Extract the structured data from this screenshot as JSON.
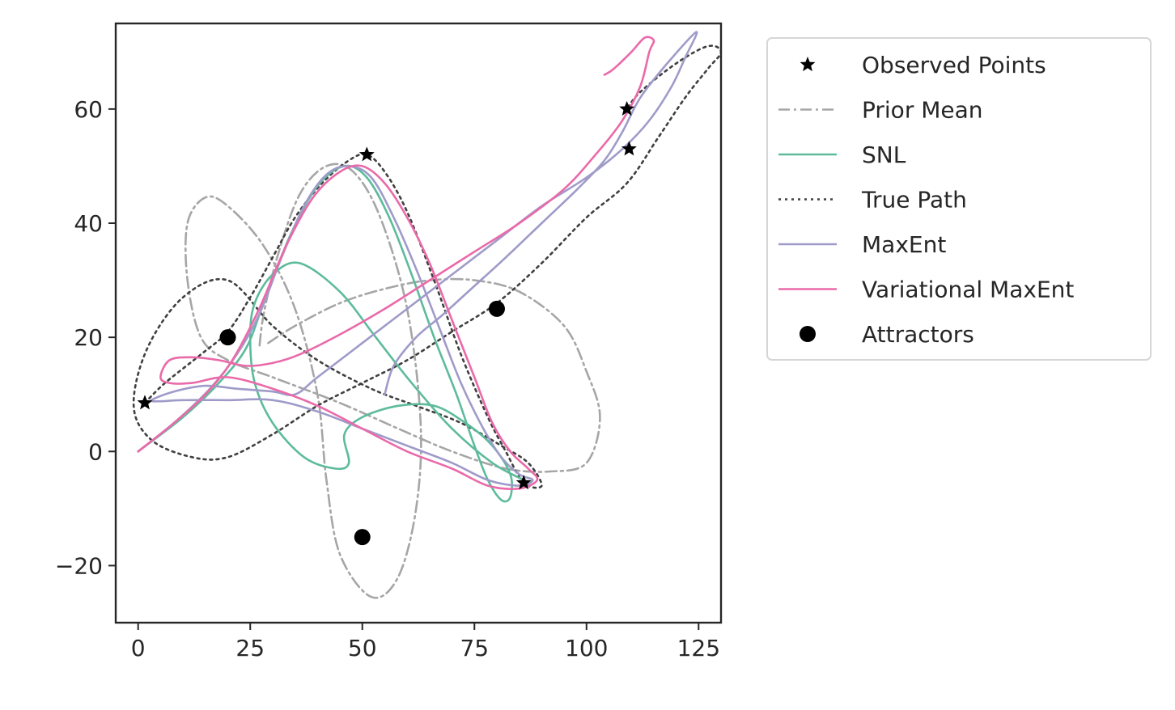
{
  "chart_data": {
    "type": "scatter",
    "title": "",
    "xlabel": "",
    "ylabel": "",
    "xlim": [
      -5,
      130
    ],
    "ylim": [
      -30,
      75
    ],
    "xticks": [
      0,
      25,
      50,
      75,
      100,
      125
    ],
    "xtick_labels": [
      "0",
      "25",
      "50",
      "75",
      "100",
      "125"
    ],
    "yticks": [
      -20,
      0,
      20,
      40,
      60
    ],
    "ytick_labels": [
      "−20",
      "0",
      "20",
      "40",
      "60"
    ],
    "grid": false,
    "legend_position": "outside-right",
    "legend": [
      {
        "key": "observed",
        "label": "Observed Points",
        "marker": "star",
        "color": "#000000"
      },
      {
        "key": "prior_mean",
        "label": "Prior Mean",
        "linestyle": "dashdot",
        "color": "#a6a6a6"
      },
      {
        "key": "snl",
        "label": "SNL",
        "linestyle": "solid",
        "color": "#5dbb9c"
      },
      {
        "key": "true_path",
        "label": "True Path",
        "linestyle": "dotted",
        "color": "#404040"
      },
      {
        "key": "maxent",
        "label": "MaxEnt",
        "linestyle": "solid",
        "color": "#9f9bc9"
      },
      {
        "key": "variational_maxent",
        "label": "Variational MaxEnt",
        "linestyle": "solid",
        "color": "#ea6aa9"
      },
      {
        "key": "attractors",
        "label": "Attractors",
        "marker": "circle",
        "color": "#000000"
      }
    ],
    "series": {
      "prior_mean": [
        [
          29,
          19
        ],
        [
          35,
          22
        ],
        [
          45,
          26
        ],
        [
          55,
          28.5
        ],
        [
          65,
          30
        ],
        [
          75,
          30
        ],
        [
          85,
          28
        ],
        [
          95,
          22
        ],
        [
          100,
          14
        ],
        [
          103,
          6
        ],
        [
          100,
          -2
        ],
        [
          92,
          -3.5
        ],
        [
          82,
          -3
        ],
        [
          70,
          0
        ],
        [
          58,
          4
        ],
        [
          45,
          8.5
        ],
        [
          30,
          13
        ],
        [
          20,
          16
        ],
        [
          14,
          20
        ],
        [
          11,
          30
        ],
        [
          11,
          40
        ],
        [
          15,
          44.5
        ],
        [
          20,
          43
        ],
        [
          28,
          36
        ],
        [
          35,
          25
        ],
        [
          40,
          10
        ],
        [
          42,
          -5
        ],
        [
          45,
          -18
        ],
        [
          52,
          -25.5
        ],
        [
          58,
          -22
        ],
        [
          62,
          -10
        ],
        [
          63,
          5
        ],
        [
          60,
          25
        ],
        [
          54,
          41
        ],
        [
          48,
          49
        ],
        [
          42,
          50
        ],
        [
          36,
          45
        ],
        [
          31,
          34
        ],
        [
          28,
          24
        ],
        [
          27,
          18
        ]
      ],
      "snl": [
        [
          0,
          0
        ],
        [
          10,
          6
        ],
        [
          18,
          12
        ],
        [
          24,
          18
        ],
        [
          28,
          26
        ],
        [
          34,
          38
        ],
        [
          40,
          46.5
        ],
        [
          46,
          50
        ],
        [
          51,
          48
        ],
        [
          56,
          41
        ],
        [
          61,
          31
        ],
        [
          66,
          20
        ],
        [
          71,
          10
        ],
        [
          75,
          1
        ],
        [
          78,
          -5
        ],
        [
          81,
          -8.5
        ],
        [
          83,
          -8
        ],
        [
          83,
          -4
        ],
        [
          79,
          1
        ],
        [
          73,
          5
        ],
        [
          66,
          8
        ],
        [
          58,
          8
        ],
        [
          50,
          6
        ],
        [
          46,
          3
        ],
        [
          47,
          -2
        ],
        [
          44,
          -3
        ],
        [
          37,
          -1
        ],
        [
          30,
          5
        ],
        [
          26,
          12
        ],
        [
          25,
          20
        ],
        [
          26,
          26
        ],
        [
          30,
          31
        ],
        [
          36,
          33
        ],
        [
          45,
          28
        ],
        [
          53,
          20
        ],
        [
          61,
          12
        ],
        [
          70,
          4
        ],
        [
          79,
          -2
        ],
        [
          86,
          -5
        ]
      ],
      "true_path": [
        [
          1.5,
          8.5
        ],
        [
          6,
          12
        ],
        [
          14,
          17
        ],
        [
          20,
          21
        ],
        [
          25,
          27
        ],
        [
          30,
          34
        ],
        [
          35,
          41
        ],
        [
          41,
          47
        ],
        [
          47,
          51
        ],
        [
          51,
          52
        ],
        [
          55,
          49
        ],
        [
          60,
          42
        ],
        [
          66,
          30
        ],
        [
          72,
          17
        ],
        [
          78,
          6
        ],
        [
          82,
          0
        ],
        [
          86,
          -5.5
        ],
        [
          90,
          -6
        ],
        [
          87,
          -2
        ],
        [
          81,
          1
        ],
        [
          72,
          5
        ],
        [
          62,
          8
        ],
        [
          52,
          11
        ],
        [
          40,
          16
        ],
        [
          30,
          22
        ],
        [
          20,
          30
        ],
        [
          10,
          27
        ],
        [
          2,
          18
        ],
        [
          -1,
          8
        ],
        [
          3,
          2
        ],
        [
          12,
          -1
        ],
        [
          20,
          -1
        ],
        [
          30,
          3
        ],
        [
          40,
          8
        ],
        [
          50,
          12
        ],
        [
          60,
          16
        ],
        [
          70,
          21
        ],
        [
          80,
          26
        ],
        [
          90,
          33
        ],
        [
          100,
          41
        ],
        [
          109,
          47
        ],
        [
          116,
          55
        ],
        [
          122,
          62
        ],
        [
          127,
          67
        ],
        [
          130,
          70
        ],
        [
          127,
          71
        ],
        [
          120,
          68
        ],
        [
          112,
          63
        ],
        [
          109,
          60
        ]
      ],
      "maxent": [
        [
          0,
          0
        ],
        [
          8,
          5
        ],
        [
          16,
          11
        ],
        [
          22,
          17
        ],
        [
          27,
          24
        ],
        [
          32,
          34
        ],
        [
          37,
          43
        ],
        [
          42,
          48.5
        ],
        [
          47,
          50
        ],
        [
          52,
          48
        ],
        [
          57,
          41
        ],
        [
          62,
          32
        ],
        [
          67,
          22
        ],
        [
          72,
          12
        ],
        [
          77,
          4
        ],
        [
          81,
          -1
        ],
        [
          85,
          -4
        ],
        [
          88,
          -5
        ],
        [
          85,
          -6
        ],
        [
          78,
          -5
        ],
        [
          70,
          -2
        ],
        [
          60,
          1
        ],
        [
          50,
          4
        ],
        [
          40,
          7
        ],
        [
          30,
          9
        ],
        [
          20,
          9
        ],
        [
          10,
          9
        ],
        [
          5,
          8.8
        ],
        [
          3,
          9
        ],
        [
          8,
          10.5
        ],
        [
          15,
          11.5
        ],
        [
          22,
          11
        ],
        [
          30,
          10.5
        ],
        [
          35,
          10
        ],
        [
          40,
          13
        ],
        [
          50,
          19
        ],
        [
          60,
          25
        ],
        [
          70,
          31
        ],
        [
          80,
          37
        ],
        [
          90,
          43
        ],
        [
          100,
          48
        ],
        [
          108,
          53
        ],
        [
          114,
          58
        ],
        [
          119,
          64
        ],
        [
          122,
          69
        ],
        [
          124.5,
          73.5
        ],
        [
          118,
          68
        ],
        [
          112,
          62
        ],
        [
          108,
          56
        ],
        [
          104,
          51
        ],
        [
          98,
          46
        ],
        [
          90,
          40
        ],
        [
          82,
          34
        ],
        [
          75,
          29
        ],
        [
          68,
          24
        ],
        [
          62,
          20
        ],
        [
          57,
          15
        ],
        [
          55,
          10
        ]
      ],
      "variational_maxent": [
        [
          0,
          0
        ],
        [
          8,
          5
        ],
        [
          15,
          10
        ],
        [
          21,
          16
        ],
        [
          27,
          25
        ],
        [
          33,
          36
        ],
        [
          39,
          44.5
        ],
        [
          45,
          49
        ],
        [
          50,
          50
        ],
        [
          55,
          47
        ],
        [
          60,
          41
        ],
        [
          65,
          33
        ],
        [
          70,
          23
        ],
        [
          75,
          13
        ],
        [
          79,
          5
        ],
        [
          83,
          0
        ],
        [
          87,
          -3
        ],
        [
          89,
          -5
        ],
        [
          85,
          -6.5
        ],
        [
          78,
          -6
        ],
        [
          70,
          -3
        ],
        [
          60,
          0
        ],
        [
          50,
          4
        ],
        [
          40,
          8
        ],
        [
          30,
          11
        ],
        [
          20,
          13
        ],
        [
          12,
          12
        ],
        [
          7,
          12
        ],
        [
          5,
          13
        ],
        [
          7,
          16
        ],
        [
          12,
          16.5
        ],
        [
          18,
          16
        ],
        [
          24,
          15
        ],
        [
          30,
          15.5
        ],
        [
          36,
          17
        ],
        [
          45,
          20.5
        ],
        [
          55,
          25
        ],
        [
          65,
          30
        ],
        [
          75,
          35
        ],
        [
          85,
          40
        ],
        [
          95,
          46
        ],
        [
          102,
          52
        ],
        [
          108,
          58
        ],
        [
          112,
          64
        ],
        [
          114,
          70
        ],
        [
          115,
          72
        ],
        [
          113,
          72.5
        ],
        [
          110,
          70
        ],
        [
          106,
          67
        ],
        [
          104,
          66
        ]
      ]
    },
    "observed_points": [
      [
        1.5,
        8.5
      ],
      [
        51,
        52
      ],
      [
        86,
        -5.5
      ],
      [
        109,
        60
      ],
      [
        109.5,
        53
      ]
    ],
    "attractors": [
      [
        20,
        20
      ],
      [
        80,
        25
      ],
      [
        50,
        -15
      ]
    ]
  }
}
